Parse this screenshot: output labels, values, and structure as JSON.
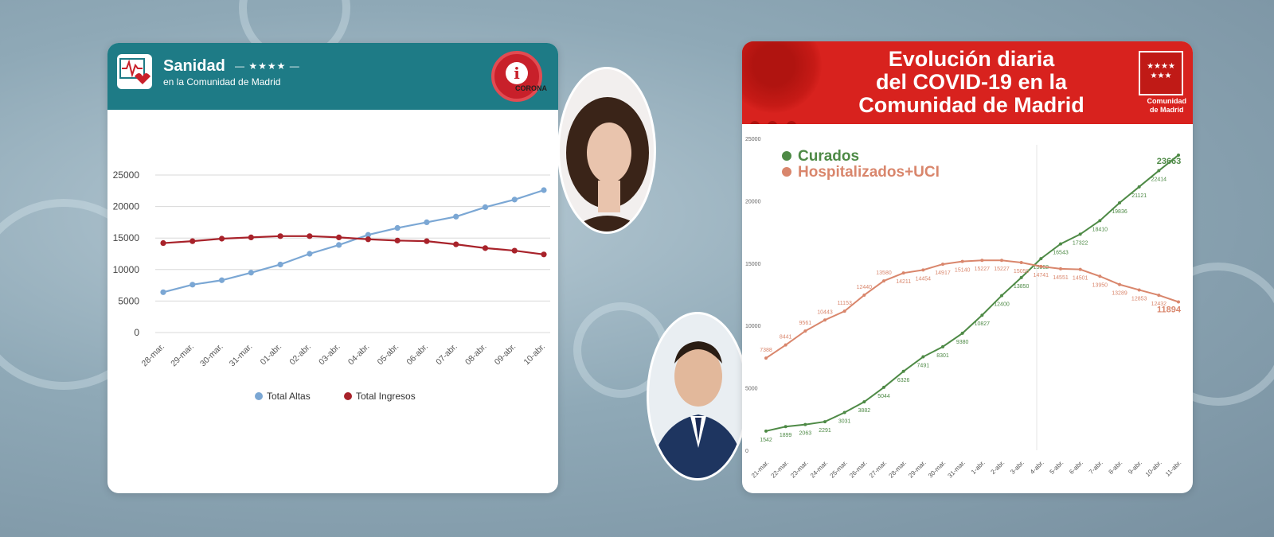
{
  "left_panel": {
    "brand_title": "Sanidad",
    "brand_stars": "— ★★★★ —",
    "brand_subtitle": "en la Comunidad de Madrid",
    "badge_text": "CORONA"
  },
  "right_panel": {
    "title_lines": [
      "Evolución diaria",
      "del COVID-19 en la",
      "Comunidad de Madrid"
    ],
    "logo_stars": "★★★★\n★★★",
    "logo_label_lines": [
      "Comunidad",
      "de Madrid"
    ]
  },
  "chart_data": [
    {
      "type": "line",
      "categories": [
        "28-mar.",
        "29-mar.",
        "30-mar.",
        "31-mar.",
        "01-abr.",
        "02-abr.",
        "03-abr.",
        "04-abr.",
        "05-abr.",
        "06-abr.",
        "07-abr.",
        "08-abr.",
        "09-abr.",
        "10-abr."
      ],
      "series": [
        {
          "name": "Total Altas",
          "color": "#7ba7d4",
          "values": [
            6400,
            7600,
            8300,
            9500,
            10800,
            12500,
            13900,
            15500,
            16600,
            17500,
            18400,
            19900,
            21100,
            22600
          ]
        },
        {
          "name": "Total Ingresos",
          "color": "#a8222a",
          "values": [
            14200,
            14500,
            14900,
            15100,
            15300,
            15300,
            15100,
            14800,
            14600,
            14500,
            14000,
            13400,
            13000,
            12400
          ]
        }
      ],
      "yticks": [
        0,
        5000,
        10000,
        15000,
        20000,
        25000
      ],
      "ylim": [
        0,
        25000
      ],
      "grid": true,
      "legend": "bottom"
    },
    {
      "type": "line",
      "categories": [
        "21-mar.",
        "22-mar.",
        "23-mar.",
        "24-mar.",
        "25-mar.",
        "26-mar.",
        "27-mar.",
        "28-mar.",
        "29-mar.",
        "30-mar.",
        "31-mar.",
        "1-abr.",
        "2-abr.",
        "3-abr.",
        "4-abr.",
        "5-abr.",
        "6-abr.",
        "7-abr.",
        "8-abr.",
        "9-abr.",
        "10-abr.",
        "11-abr."
      ],
      "series": [
        {
          "name": "Curados",
          "color": "#4e8a46",
          "values": [
            1542,
            1899,
            2063,
            2291,
            3031,
            3882,
            5044,
            6326,
            7491,
            8301,
            9380,
            10827,
            12400,
            13850,
            15362,
            16543,
            17322,
            18410,
            19836,
            21121,
            22414,
            23663
          ],
          "labels": [
            "1542",
            "1899",
            "2063",
            "2291",
            "3031",
            "3882",
            "5044",
            "6326",
            "7491",
            "8301",
            "9380",
            "10827",
            "12400",
            "13850",
            "15362",
            "16543",
            "17322",
            "18410",
            "19836",
            "21121",
            "22414",
            "23663"
          ]
        },
        {
          "name": "Hospitalizados+UCI",
          "color": "#d9866c",
          "values": [
            7388,
            8441,
            9561,
            10443,
            11153,
            12440,
            13580,
            14211,
            14454,
            14917,
            15140,
            15227,
            15227,
            15050,
            14741,
            14551,
            14501,
            13950,
            13289,
            12853,
            12432,
            11894
          ],
          "labels": [
            "7388",
            "8441",
            "9561",
            "10443",
            "11153",
            "12440",
            "13580",
            "14211",
            "14454",
            "14917",
            "15140",
            "15227",
            "15227",
            "15050",
            "14741",
            "14551",
            "14501",
            "13950",
            "13289",
            "12853",
            "12432",
            "11894"
          ]
        }
      ],
      "yticks": [
        0,
        5000,
        10000,
        15000,
        20000,
        25000
      ],
      "ytick_labels": [
        "0",
        "5000",
        "10000",
        "15000",
        "20000",
        "25000"
      ],
      "ylim": [
        0,
        25000
      ],
      "grid": false,
      "legend": "top-left"
    }
  ]
}
